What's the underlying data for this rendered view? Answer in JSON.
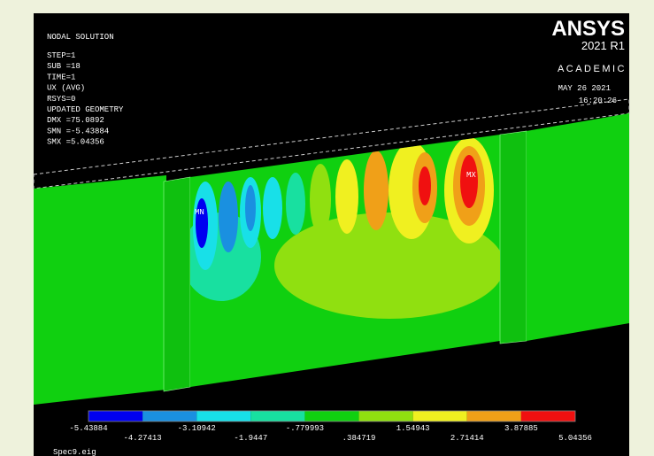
{
  "header": {
    "title": "NODAL SOLUTION",
    "lines": [
      "STEP=1",
      "SUB =18",
      "TIME=1",
      "UX       (AVG)",
      "RSYS=0",
      "UPDATED GEOMETRY",
      "DMX =75.0892",
      "SMN =-5.43884",
      "SMX =5.04356"
    ]
  },
  "logo": {
    "brand": "ANSYS",
    "release": "2021 R1",
    "edition": "ACADEMIC",
    "date": "MAY 26 2021",
    "time": "16:20:26"
  },
  "markers": {
    "min": "MN",
    "max": "MX"
  },
  "legend": {
    "labels": [
      "-5.43884",
      "-4.27413",
      "-3.10942",
      "-1.9447",
      "-.779993",
      ".384719",
      "1.54943",
      "2.71414",
      "3.87885",
      "5.04356"
    ],
    "colors": [
      "#0000f0",
      "#1a90e0",
      "#18e0e8",
      "#18e0a0",
      "#10d010",
      "#90e010",
      "#f0f020",
      "#f0a018",
      "#f01010"
    ]
  },
  "footer": "Spec9.eig"
}
